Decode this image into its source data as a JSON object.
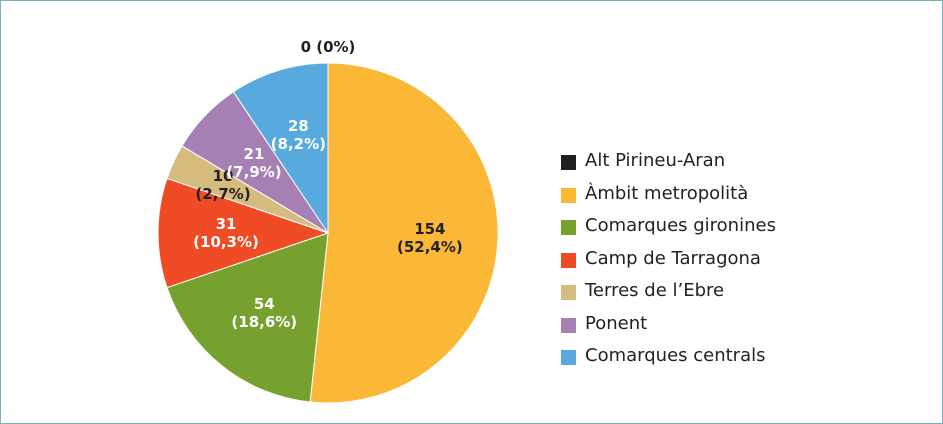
{
  "chart_data": {
    "type": "pie",
    "categories": [
      "Alt Pirineu-Aran",
      "Àmbit metropolità",
      "Comarques gironines",
      "Camp de Tarragona",
      "Terres de l’Ebre",
      "Ponent",
      "Comarques centrals"
    ],
    "values": [
      0,
      154,
      54,
      31,
      10,
      21,
      28
    ],
    "value_labels": [
      "0 (0%)",
      "154\n(52,4%)",
      "54\n(18,6%)",
      "31\n(10,3%)",
      "10\n(2,7%)",
      "21\n(7,9%)",
      "28\n(8,2%)"
    ],
    "colors": [
      "#231f20",
      "#fbb836",
      "#76a12e",
      "#ef4b24",
      "#d6bb7f",
      "#a67fb5",
      "#58a9dd"
    ],
    "legend": "right"
  }
}
